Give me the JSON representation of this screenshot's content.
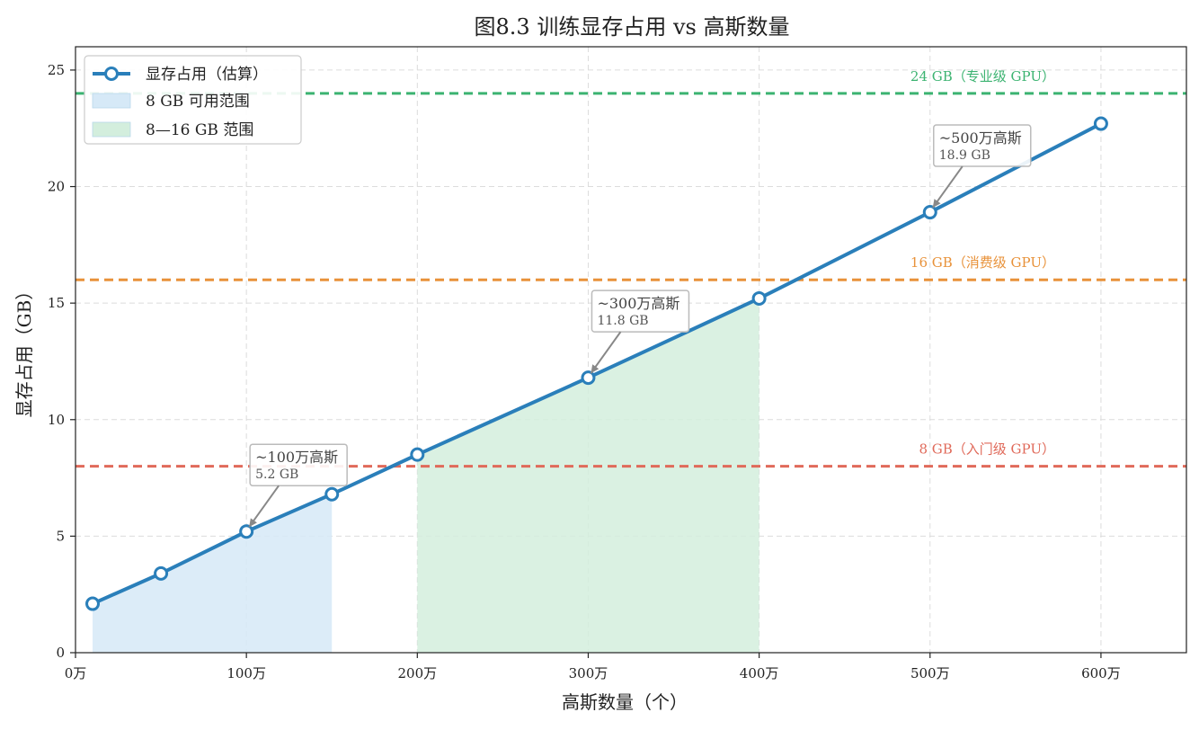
{
  "chart_data": {
    "type": "line",
    "title": "图8.3  训练显存占用 vs 高斯数量",
    "xlabel": "高斯数量（个）",
    "ylabel": "显存占用（GB）",
    "xlim": [
      0,
      650
    ],
    "ylim": [
      0,
      26
    ],
    "x_ticks": [
      0,
      100,
      200,
      300,
      400,
      500,
      600
    ],
    "x_tick_labels": [
      "0万",
      "100万",
      "200万",
      "300万",
      "400万",
      "500万",
      "600万"
    ],
    "y_ticks": [
      0,
      5,
      10,
      15,
      20,
      25
    ],
    "y_tick_labels": [
      "0",
      "5",
      "10",
      "15",
      "20",
      "25"
    ],
    "grid": true,
    "legend_position": "top-left",
    "series": [
      {
        "name": "显存占用（估算）",
        "color": "#2a7fba",
        "x": [
          10,
          50,
          100,
          150,
          200,
          300,
          400,
          500,
          600
        ],
        "y": [
          2.1,
          3.4,
          5.2,
          6.8,
          8.5,
          11.8,
          15.2,
          18.9,
          22.7
        ]
      }
    ],
    "shaded_regions": [
      {
        "name": "8 GB 可用范围",
        "x_start": 10,
        "x_end": 150,
        "color": "#d6e9f7"
      },
      {
        "name": "8—16 GB 范围",
        "x_start": 200,
        "x_end": 400,
        "color": "#d3eedd"
      }
    ],
    "reference_lines": [
      {
        "y": 24,
        "label": "24 GB（专业级 GPU）",
        "color": "#3cb371"
      },
      {
        "y": 16,
        "label": "16 GB（消费级 GPU）",
        "color": "#e8923a"
      },
      {
        "y": 8,
        "label": "8 GB（入门级 GPU）",
        "color": "#e06a5a"
      }
    ],
    "annotations": [
      {
        "x": 100,
        "y": 5.2,
        "line1": "~100万高斯",
        "line2": "5.2 GB"
      },
      {
        "x": 300,
        "y": 11.8,
        "line1": "~300万高斯",
        "line2": "11.8 GB"
      },
      {
        "x": 500,
        "y": 18.9,
        "line1": "~500万高斯",
        "line2": "18.9 GB"
      }
    ]
  }
}
